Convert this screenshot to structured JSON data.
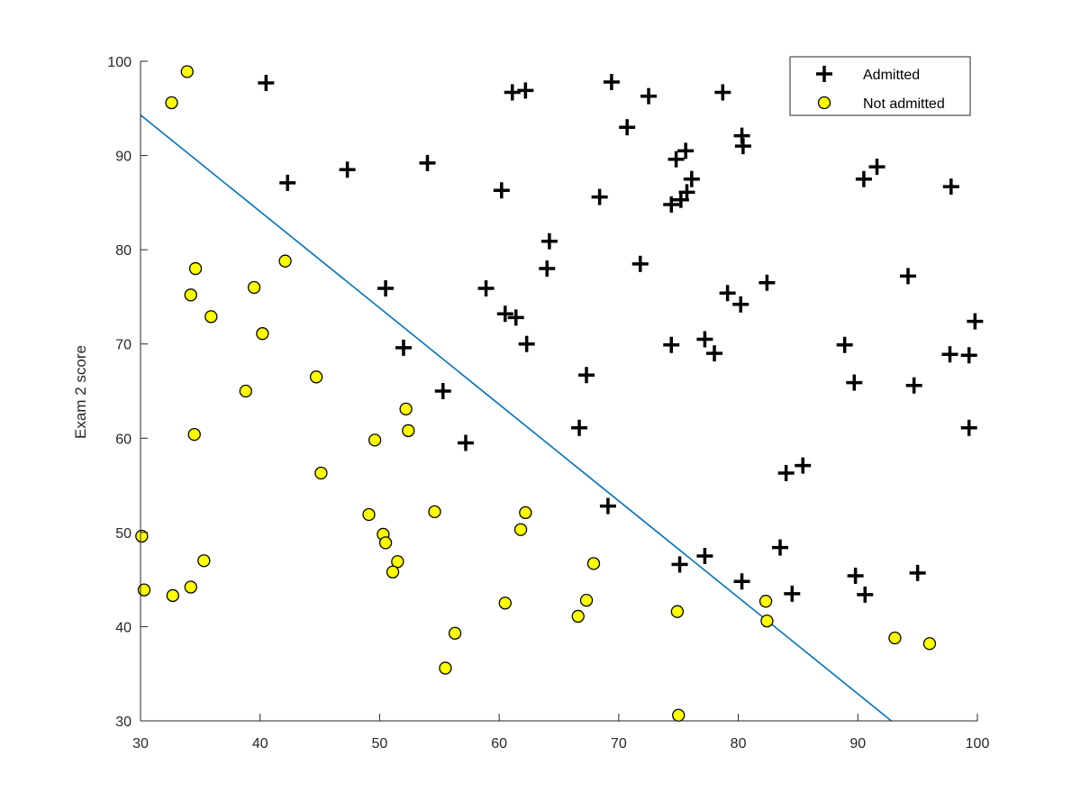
{
  "chart_data": {
    "type": "scatter",
    "title": "",
    "xlabel": "",
    "ylabel": "Exam 2 score",
    "xlim": [
      30,
      100
    ],
    "ylim": [
      30,
      100
    ],
    "xticks": [
      30,
      40,
      50,
      60,
      70,
      80,
      90,
      100
    ],
    "yticks": [
      30,
      40,
      50,
      60,
      70,
      80,
      90,
      100
    ],
    "grid": false,
    "legend_position": "top-right",
    "series": [
      {
        "name": "Admitted",
        "marker": "plus",
        "color": "#000000",
        "points": [
          [
            40.5,
            97.7
          ],
          [
            42.3,
            87.1
          ],
          [
            47.3,
            88.5
          ],
          [
            54.0,
            89.2
          ],
          [
            60.2,
            86.3
          ],
          [
            61.1,
            96.7
          ],
          [
            62.2,
            96.9
          ],
          [
            69.4,
            97.8
          ],
          [
            70.7,
            93.0
          ],
          [
            72.5,
            96.3
          ],
          [
            78.7,
            96.7
          ],
          [
            80.3,
            92.1
          ],
          [
            80.4,
            91.0
          ],
          [
            74.8,
            89.6
          ],
          [
            75.6,
            90.5
          ],
          [
            75.2,
            85.3
          ],
          [
            74.4,
            84.8
          ],
          [
            75.7,
            86.1
          ],
          [
            76.1,
            87.5
          ],
          [
            91.6,
            88.8
          ],
          [
            90.5,
            87.5
          ],
          [
            97.8,
            86.7
          ],
          [
            68.4,
            85.6
          ],
          [
            64.2,
            80.9
          ],
          [
            64.0,
            78.0
          ],
          [
            71.8,
            78.5
          ],
          [
            58.9,
            75.9
          ],
          [
            50.5,
            75.9
          ],
          [
            60.5,
            73.2
          ],
          [
            61.4,
            72.8
          ],
          [
            79.1,
            75.4
          ],
          [
            80.2,
            74.2
          ],
          [
            82.4,
            76.5
          ],
          [
            94.2,
            77.2
          ],
          [
            99.8,
            72.4
          ],
          [
            52.0,
            69.6
          ],
          [
            62.3,
            70.0
          ],
          [
            67.3,
            66.7
          ],
          [
            74.4,
            69.9
          ],
          [
            77.2,
            70.5
          ],
          [
            78.0,
            69.0
          ],
          [
            88.9,
            69.9
          ],
          [
            89.7,
            65.9
          ],
          [
            94.7,
            65.6
          ],
          [
            97.7,
            68.9
          ],
          [
            99.3,
            68.8
          ],
          [
            99.3,
            61.1
          ],
          [
            55.3,
            65.0
          ],
          [
            57.2,
            59.5
          ],
          [
            66.7,
            61.1
          ],
          [
            69.1,
            52.8
          ],
          [
            84.0,
            56.3
          ],
          [
            85.4,
            57.1
          ],
          [
            75.1,
            46.6
          ],
          [
            77.2,
            47.5
          ],
          [
            80.3,
            44.8
          ],
          [
            83.5,
            48.4
          ],
          [
            84.5,
            43.5
          ],
          [
            89.8,
            45.4
          ],
          [
            90.6,
            43.4
          ],
          [
            95.0,
            45.7
          ]
        ]
      },
      {
        "name": "Not admitted",
        "marker": "circle",
        "color": "#ffff00",
        "points": [
          [
            33.9,
            98.9
          ],
          [
            32.6,
            95.6
          ],
          [
            34.6,
            78.0
          ],
          [
            34.2,
            75.2
          ],
          [
            35.9,
            72.9
          ],
          [
            39.5,
            76.0
          ],
          [
            42.1,
            78.8
          ],
          [
            40.2,
            71.1
          ],
          [
            38.8,
            65.0
          ],
          [
            44.7,
            66.5
          ],
          [
            34.5,
            60.4
          ],
          [
            45.1,
            56.3
          ],
          [
            49.6,
            59.8
          ],
          [
            52.2,
            63.1
          ],
          [
            52.4,
            60.8
          ],
          [
            49.1,
            51.9
          ],
          [
            50.3,
            49.8
          ],
          [
            50.5,
            48.9
          ],
          [
            51.5,
            46.9
          ],
          [
            51.1,
            45.8
          ],
          [
            54.6,
            52.2
          ],
          [
            62.2,
            52.1
          ],
          [
            61.8,
            50.3
          ],
          [
            30.1,
            49.6
          ],
          [
            30.3,
            43.9
          ],
          [
            32.7,
            43.3
          ],
          [
            34.2,
            44.2
          ],
          [
            35.3,
            47.0
          ],
          [
            56.3,
            39.3
          ],
          [
            55.5,
            35.6
          ],
          [
            60.5,
            42.5
          ],
          [
            66.6,
            41.1
          ],
          [
            67.3,
            42.8
          ],
          [
            67.9,
            46.7
          ],
          [
            74.9,
            41.6
          ],
          [
            75.0,
            30.6
          ],
          [
            82.3,
            42.7
          ],
          [
            82.4,
            40.6
          ],
          [
            93.1,
            38.8
          ],
          [
            96.0,
            38.2
          ]
        ]
      }
    ],
    "decision_boundary": {
      "name": "",
      "color": "#0072bd",
      "points": [
        [
          30,
          94.3
        ],
        [
          92.8,
          30
        ]
      ]
    }
  }
}
